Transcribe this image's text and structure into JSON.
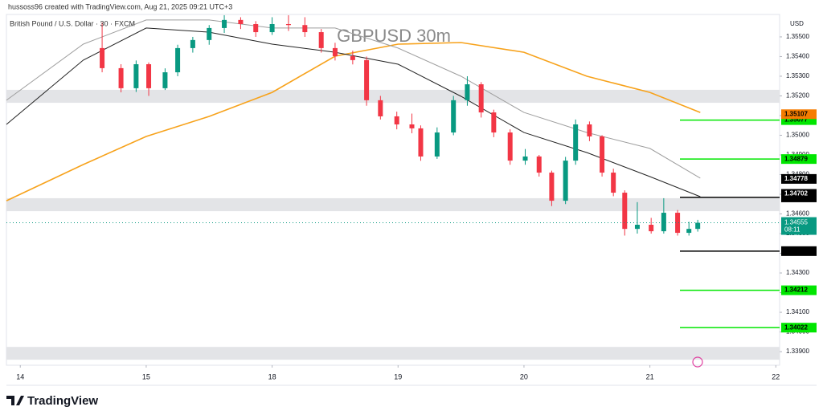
{
  "chart_data": {
    "type": "candlestick",
    "header": "hussoss96 created with TradingView.com, Aug 21, 2025 09:21 UTC+3",
    "symbol": "British Pound / U.S. Dollar · 30 · FXCM",
    "title": "GBPUSD 30m",
    "currency": "USD",
    "brand": "TradingView",
    "up_color": "#089981",
    "down_color": "#f23645",
    "xlim": [
      -0.11,
      6.03
    ],
    "xticks": [
      {
        "value": 0,
        "label": "14"
      },
      {
        "value": 1,
        "label": "15"
      },
      {
        "value": 2,
        "label": "18"
      },
      {
        "value": 3,
        "label": "19"
      },
      {
        "value": 4,
        "label": "20"
      },
      {
        "value": 5,
        "label": "21"
      },
      {
        "value": 6,
        "label": "22"
      }
    ],
    "ylim": [
      1.33831,
      1.35614
    ],
    "yticks": [
      {
        "value": 1.355,
        "label": "1.35500"
      },
      {
        "value": 1.354,
        "label": "1.35400"
      },
      {
        "value": 1.353,
        "label": "1.35300"
      },
      {
        "value": 1.352,
        "label": "1.35200"
      },
      {
        "value": 1.351,
        "label": "1.35100"
      },
      {
        "value": 1.35,
        "label": "1.35000"
      },
      {
        "value": 1.349,
        "label": "1.34900"
      },
      {
        "value": 1.348,
        "label": "1.34800"
      },
      {
        "value": 1.347,
        "label": "1.34700"
      },
      {
        "value": 1.346,
        "label": "1.34600"
      },
      {
        "value": 1.345,
        "label": "1.34500"
      },
      {
        "value": 1.344,
        "label": "1.34400"
      },
      {
        "value": 1.343,
        "label": "1.34300"
      },
      {
        "value": 1.342,
        "label": "1.34200"
      },
      {
        "value": 1.341,
        "label": "1.34100"
      },
      {
        "value": 1.34,
        "label": "1.34000"
      },
      {
        "value": 1.339,
        "label": "1.33900"
      }
    ],
    "x": [
      0.65,
      0.8,
      0.92,
      1.02,
      1.15,
      1.25,
      1.37,
      1.5,
      1.62,
      1.75,
      1.87,
      2.0,
      2.13,
      2.26,
      2.39,
      2.5,
      2.64,
      2.75,
      2.86,
      2.99,
      3.11,
      3.18,
      3.31,
      3.44,
      3.55,
      3.66,
      3.76,
      3.89,
      4.01,
      4.12,
      4.22,
      4.33,
      4.41,
      4.52,
      4.62,
      4.71,
      4.8,
      4.9,
      5.01,
      5.11,
      5.22,
      5.31,
      5.38
    ],
    "open": [
      1.35443,
      1.35341,
      1.35239,
      1.35361,
      1.35239,
      1.3532,
      1.35443,
      1.35484,
      1.35545,
      1.35586,
      1.35565,
      1.35524,
      1.35565,
      1.3556,
      1.35524,
      1.35443,
      1.35402,
      1.35382,
      1.35178,
      1.35096,
      1.35055,
      1.35035,
      1.34892,
      1.35014,
      1.35178,
      1.35259,
      1.35116,
      1.35014,
      1.34871,
      1.34892,
      1.3481,
      1.34667,
      1.34871,
      1.35055,
      1.34994,
      1.3481,
      1.34708,
      1.34524,
      1.34545,
      1.34512,
      1.34606,
      1.34504,
      1.34524
    ],
    "high": [
      1.35573,
      1.35361,
      1.3538,
      1.3537,
      1.3534,
      1.3546,
      1.355,
      1.3556,
      1.3561,
      1.356,
      1.3558,
      1.356,
      1.3561,
      1.356,
      1.3554,
      1.3547,
      1.3543,
      1.354,
      1.352,
      1.3512,
      1.3511,
      1.3505,
      1.3504,
      1.352,
      1.353,
      1.3527,
      1.3513,
      1.3503,
      1.3493,
      1.349,
      1.3482,
      1.3489,
      1.3508,
      1.3507,
      1.35,
      1.3483,
      1.3472,
      1.3466,
      1.3458,
      1.3468,
      1.3462,
      1.3456,
      1.3457
    ],
    "low": [
      1.3532,
      1.35218,
      1.3522,
      1.352,
      1.3523,
      1.353,
      1.3542,
      1.3546,
      1.3552,
      1.3554,
      1.355,
      1.3551,
      1.3553,
      1.355,
      1.3542,
      1.3538,
      1.3536,
      1.3515,
      1.3508,
      1.3503,
      1.3501,
      1.3487,
      1.3488,
      1.35,
      1.3515,
      1.3509,
      1.3499,
      1.3485,
      1.3485,
      1.3479,
      1.3464,
      1.3465,
      1.3485,
      1.3497,
      1.3479,
      1.3469,
      1.3449,
      1.345,
      1.345,
      1.345,
      1.3449,
      1.3449,
      1.3451
    ],
    "close": [
      1.35341,
      1.35239,
      1.35361,
      1.35239,
      1.3532,
      1.35443,
      1.35484,
      1.35545,
      1.35586,
      1.35565,
      1.35524,
      1.35565,
      1.3556,
      1.35524,
      1.35443,
      1.35402,
      1.35382,
      1.35178,
      1.35096,
      1.35055,
      1.35035,
      1.34892,
      1.35014,
      1.35178,
      1.35259,
      1.35116,
      1.35014,
      1.34871,
      1.34892,
      1.3481,
      1.34667,
      1.34871,
      1.35055,
      1.34994,
      1.3481,
      1.34708,
      1.34524,
      1.34545,
      1.34512,
      1.34606,
      1.34504,
      1.34524,
      1.34555
    ],
    "moving_averages": [
      {
        "color": "#f7a21b",
        "x": [
          -0.11,
          0.5,
          1,
          1.5,
          2,
          2.5,
          3,
          3.5,
          4,
          4.5,
          5,
          5.4
        ],
        "values": [
          1.34667,
          1.34851,
          1.34994,
          1.35096,
          1.35218,
          1.35402,
          1.35463,
          1.35471,
          1.35422,
          1.353,
          1.35218,
          1.35116
        ]
      },
      {
        "color": "#222222",
        "x": [
          -0.11,
          0.5,
          1,
          1.5,
          2,
          2.5,
          3,
          3.5,
          4,
          4.5,
          5,
          5.4
        ],
        "values": [
          1.35055,
          1.35382,
          1.35545,
          1.35524,
          1.35463,
          1.35422,
          1.35361,
          1.35198,
          1.35014,
          1.34912,
          1.3479,
          1.34688
        ]
      },
      {
        "color": "#9e9e9e",
        "x": [
          -0.11,
          0.5,
          1,
          1.5,
          2,
          2.5,
          3,
          3.5,
          4,
          4.5,
          5,
          5.4
        ],
        "values": [
          1.35178,
          1.35463,
          1.35586,
          1.35586,
          1.35545,
          1.35545,
          1.35443,
          1.353,
          1.35116,
          1.35014,
          1.34933,
          1.34782
        ]
      }
    ],
    "zones": [
      [
        1.35231,
        1.35165
      ],
      [
        1.3468,
        1.34614
      ],
      [
        1.33924,
        1.33859
      ]
    ],
    "zone_color": "#e3e4e7",
    "levels": [
      {
        "value": 1.35077,
        "color": "#00e600"
      },
      {
        "value": 1.34879,
        "color": "#00e600"
      },
      {
        "value": 1.34684,
        "color": "#000000"
      },
      {
        "value": 1.34411,
        "color": "#000000"
      },
      {
        "value": 1.34212,
        "color": "#00e600"
      },
      {
        "value": 1.34022,
        "color": "#00e600"
      }
    ],
    "price_tags": [
      {
        "value": 1.35107,
        "color": "#f57c00"
      },
      {
        "value": 1.34778,
        "color": "#000000"
      },
      {
        "value": 1.34702,
        "color": "#000000"
      }
    ],
    "last_price": 1.34555,
    "countdown": "08:11"
  }
}
